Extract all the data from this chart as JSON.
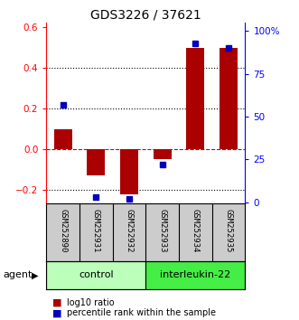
{
  "title": "GDS3226 / 37621",
  "samples": [
    "GSM252890",
    "GSM252931",
    "GSM252932",
    "GSM252933",
    "GSM252934",
    "GSM252935"
  ],
  "log10_ratio": [
    0.1,
    -0.13,
    -0.22,
    -0.05,
    0.5,
    0.5
  ],
  "percentile_rank": [
    57,
    3,
    2,
    22,
    93,
    90
  ],
  "groups": [
    {
      "label": "control",
      "indices": [
        0,
        1,
        2
      ],
      "color": "#bbffbb"
    },
    {
      "label": "interleukin-22",
      "indices": [
        3,
        4,
        5
      ],
      "color": "#44ee44"
    }
  ],
  "bar_color": "#aa0000",
  "dot_color": "#0000bb",
  "ylim_left": [
    -0.265,
    0.625
  ],
  "ylim_right": [
    -0.5,
    105
  ],
  "yticks_left": [
    -0.2,
    0.0,
    0.2,
    0.4,
    0.6
  ],
  "yticks_right": [
    0,
    25,
    50,
    75,
    100
  ],
  "ytick_labels_right": [
    "0",
    "25",
    "50",
    "75",
    "100%"
  ],
  "hlines": [
    0.4,
    0.2,
    0.0,
    -0.2
  ],
  "hlines_style": [
    "dotted",
    "dotted",
    "dashed",
    "dotted"
  ],
  "hlines_color": [
    "black",
    "black",
    "#cc0000",
    "black"
  ],
  "agent_label": "agent",
  "legend_bar_label": "log10 ratio",
  "legend_dot_label": "percentile rank within the sample",
  "background_color": "#ffffff",
  "title_fontsize": 10,
  "plot_bg": "#ffffff",
  "label_bg": "#cccccc",
  "group_colors": [
    "#bbffbb",
    "#44ee44"
  ]
}
